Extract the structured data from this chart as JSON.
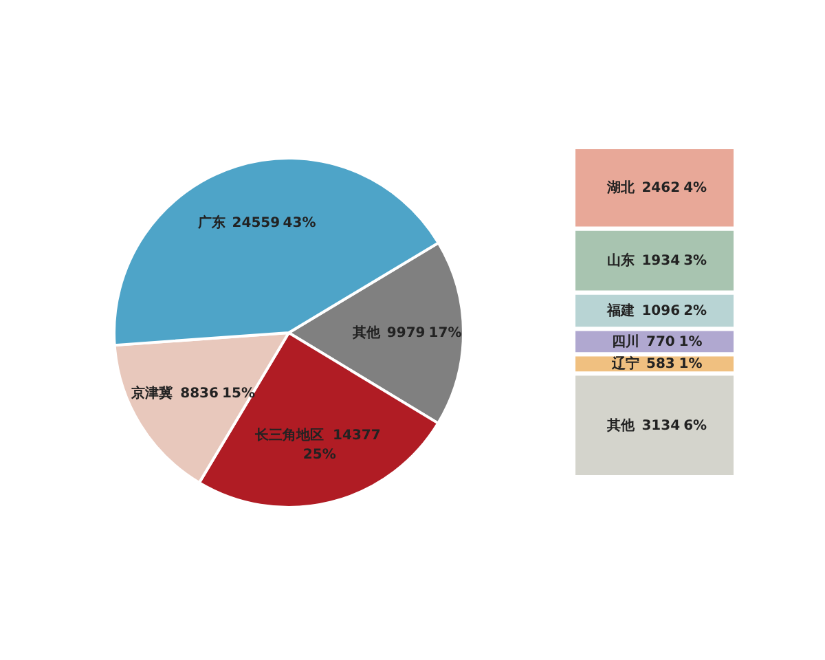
{
  "chart_data": [
    {
      "type": "pie",
      "categories": [
        "其他",
        "长三角地区",
        "京津冀",
        "广东"
      ],
      "values": [
        9979,
        14377,
        8836,
        24559
      ],
      "colors": [
        "#808080",
        "#b01c24",
        "#e8c8bc",
        "#4ea4c8"
      ],
      "value_labels": [
        "9979 17%",
        "14377 25%",
        "8836 15%",
        "24559 43%"
      ]
    },
    {
      "type": "bar",
      "stacked": true,
      "categories": [
        null
      ],
      "series": [
        {
          "name": "其他",
          "color": "#d4d4cc",
          "values": [
            3134
          ],
          "value_labels": [
            "3134 6%"
          ]
        },
        {
          "name": "辽宁",
          "color": "#f0c080",
          "values": [
            583
          ],
          "value_labels": [
            "583 1%"
          ]
        },
        {
          "name": "四川",
          "color": "#b0a8d0",
          "values": [
            770
          ],
          "value_labels": [
            "770 1%"
          ]
        },
        {
          "name": "福建",
          "color": "#b8d4d4",
          "values": [
            1096
          ],
          "value_labels": [
            "1096 2%"
          ]
        },
        {
          "name": "山东",
          "color": "#a8c4b0",
          "values": [
            1934
          ],
          "value_labels": [
            "1934 3%"
          ]
        },
        {
          "name": "湖北",
          "color": "#e8a898",
          "values": [
            2462
          ],
          "value_labels": [
            "2462 4%"
          ]
        }
      ]
    }
  ]
}
